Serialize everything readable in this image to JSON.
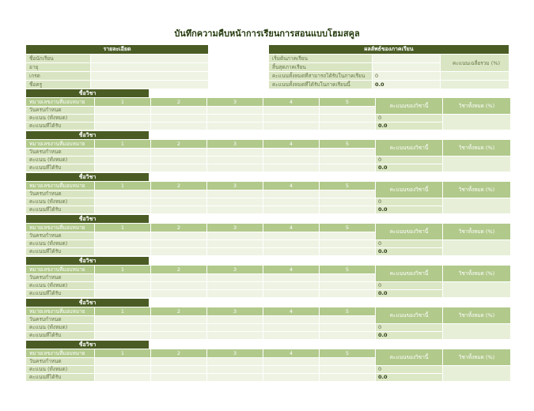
{
  "title": "บันทึกความคืบหน้าการเรียนการสอนแบบโฮมสคูล",
  "details": {
    "header": "รายละเอียด",
    "rows": [
      {
        "label": "ชื่อนักเรียน",
        "value": ""
      },
      {
        "label": "อายุ",
        "value": ""
      },
      {
        "label": "เกรด",
        "value": ""
      },
      {
        "label": "ชื่อครู",
        "value": ""
      }
    ]
  },
  "semester_results": {
    "header": "ผลลัพธ์ของภาคเรียน",
    "overall_pct_header": "คะแนนเฉลี่ยรวม (%)",
    "rows": [
      {
        "label": "เริ่มต้นภาคเรียน",
        "value": ""
      },
      {
        "label": "สิ้นสุดภาคเรียน",
        "value": ""
      },
      {
        "label": "คะแนนทั้งหมดที่สามารถได้รับในภาคเรียน",
        "value": "0"
      },
      {
        "label": "คะแนนทั้งหมดที่ได้รับในภาคเรียนนี้",
        "value": "0.0"
      }
    ]
  },
  "subject_block": {
    "header": "ชื่อวิชา",
    "row1_label": "หมายเลขงานที่มอบหมาย",
    "assignment_columns": [
      "1",
      "2",
      "3",
      "4",
      "5"
    ],
    "score_col_header": "คะแนนของวิชานี้",
    "pct_col_header": "วิชาทั้งหมด (%)",
    "row_labels": [
      "วันครบกำหนด",
      "คะแนน (ทั้งหมด)",
      "คะแนนที่ได้รับ"
    ],
    "points_possible": "0",
    "points_earned": "0.0"
  },
  "subject_block_count": 7,
  "colors": {
    "header_bar": "#4a5c24",
    "band_green": "#b1c98b",
    "label_green": "#d9e5c2",
    "value_pale": "#eef3e3",
    "calc_green": "#dce7c6",
    "merged_green": "#e7efd8",
    "title_text": "#243a0d"
  }
}
